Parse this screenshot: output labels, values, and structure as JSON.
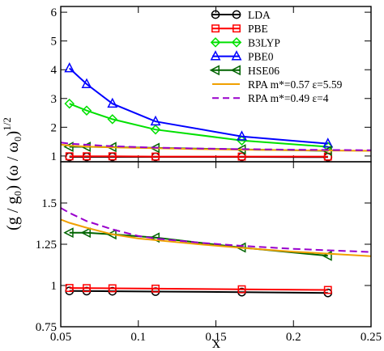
{
  "chart_data": [
    {
      "type": "line",
      "panel": "top",
      "xlim": [
        0.05,
        0.25
      ],
      "ylim": [
        0.8,
        6.2
      ],
      "y_ticks": [
        1,
        2,
        3,
        4,
        5,
        6
      ],
      "y_tick_labels": [
        "1",
        "2",
        "3",
        "4",
        "5",
        "6"
      ],
      "grid": false,
      "legend_position": "top-right",
      "series": [
        {
          "name": "LDA",
          "color": "#000000",
          "marker": "circle",
          "dash": "",
          "x": [
            0.0556,
            0.0667,
            0.0833,
            0.1111,
            0.1667,
            0.2222
          ],
          "y": [
            0.97,
            0.97,
            0.97,
            0.97,
            0.97,
            0.96
          ]
        },
        {
          "name": "PBE",
          "color": "#ff0000",
          "marker": "square",
          "dash": "",
          "x": [
            0.0556,
            0.0667,
            0.0833,
            0.1111,
            0.1667,
            0.2222
          ],
          "y": [
            0.99,
            0.99,
            0.99,
            0.98,
            0.98,
            0.98
          ]
        },
        {
          "name": "B3LYP",
          "color": "#00e000",
          "marker": "diamond",
          "dash": "",
          "x": [
            0.0556,
            0.0667,
            0.0833,
            0.1111,
            0.1667,
            0.2222
          ],
          "y": [
            2.82,
            2.58,
            2.28,
            1.92,
            1.54,
            1.32
          ]
        },
        {
          "name": "PBE0",
          "color": "#0000ff",
          "marker": "triangle-up",
          "dash": "",
          "x": [
            0.0556,
            0.0667,
            0.0833,
            0.1111,
            0.1667,
            0.2222
          ],
          "y": [
            4.05,
            3.5,
            2.82,
            2.2,
            1.68,
            1.43
          ]
        },
        {
          "name": "HSE06",
          "color": "#006400",
          "marker": "triangle-left",
          "dash": "",
          "x": [
            0.0556,
            0.0667,
            0.0833,
            0.1111,
            0.1667,
            0.2222
          ],
          "y": [
            1.32,
            1.32,
            1.31,
            1.28,
            1.23,
            1.18
          ]
        },
        {
          "name": "RPA m*=0.57 ε=5.59",
          "color": "#f0a000",
          "marker": "none",
          "dash": "",
          "x": [
            0.05,
            0.0556,
            0.0667,
            0.0833,
            0.1111,
            0.1389,
            0.1667,
            0.2,
            0.2222,
            0.25
          ],
          "y": [
            1.4,
            1.36,
            1.33,
            1.3,
            1.27,
            1.24,
            1.22,
            1.2,
            1.19,
            1.18
          ]
        },
        {
          "name": "RPA m*=0.49 ε=4",
          "color": "#9900cc",
          "marker": "none",
          "dash": "9,5",
          "x": [
            0.05,
            0.0556,
            0.0667,
            0.0833,
            0.1111,
            0.1389,
            0.1667,
            0.2,
            0.2222,
            0.25
          ],
          "y": [
            1.47,
            1.43,
            1.39,
            1.34,
            1.29,
            1.26,
            1.24,
            1.22,
            1.21,
            1.2
          ]
        }
      ]
    },
    {
      "type": "line",
      "panel": "bottom",
      "xlim": [
        0.05,
        0.25
      ],
      "ylim": [
        0.75,
        1.75
      ],
      "x_ticks": [
        0.05,
        0.1,
        0.15,
        0.2,
        0.25
      ],
      "x_tick_labels": [
        "0.05",
        "0.1",
        "0.15",
        "0.2",
        "0.25"
      ],
      "y_ticks": [
        0.75,
        1.0,
        1.25,
        1.5
      ],
      "y_tick_labels": [
        "0.75",
        "1",
        "1.25",
        "1.5"
      ],
      "xlabel": "x",
      "ylabel": "(g / g₀) (ω / ω₀)",
      "ylabel_exponent": "1/2",
      "grid": false,
      "series": [
        {
          "name": "LDA",
          "color": "#000000",
          "marker": "circle",
          "dash": "",
          "x": [
            0.0556,
            0.0667,
            0.0833,
            0.1111,
            0.1667,
            0.2222
          ],
          "y": [
            0.967,
            0.966,
            0.965,
            0.963,
            0.96,
            0.955
          ]
        },
        {
          "name": "PBE",
          "color": "#ff0000",
          "marker": "square",
          "dash": "",
          "x": [
            0.0556,
            0.0667,
            0.0833,
            0.1111,
            0.1667,
            0.2222
          ],
          "y": [
            0.985,
            0.984,
            0.983,
            0.981,
            0.977,
            0.973
          ]
        },
        {
          "name": "HSE06",
          "color": "#006400",
          "marker": "triangle-left",
          "dash": "",
          "x": [
            0.0556,
            0.0667,
            0.0833,
            0.1111,
            0.1667,
            0.2222
          ],
          "y": [
            1.32,
            1.32,
            1.31,
            1.29,
            1.23,
            1.18
          ]
        },
        {
          "name": "RPA m*=0.57 ε=5.59",
          "color": "#f0a000",
          "marker": "none",
          "dash": "",
          "x": [
            0.05,
            0.0556,
            0.0667,
            0.0833,
            0.1,
            0.1111,
            0.1389,
            0.1667,
            0.2,
            0.2222,
            0.25
          ],
          "y": [
            1.4,
            1.38,
            1.35,
            1.31,
            1.285,
            1.275,
            1.25,
            1.228,
            1.205,
            1.193,
            1.178
          ]
        },
        {
          "name": "RPA m*=0.49 ε=4",
          "color": "#9900cc",
          "marker": "none",
          "dash": "9,5",
          "x": [
            0.05,
            0.0556,
            0.0667,
            0.0833,
            0.1,
            0.1111,
            0.1389,
            0.1667,
            0.2,
            0.2222,
            0.25
          ],
          "y": [
            1.47,
            1.44,
            1.39,
            1.34,
            1.3,
            1.285,
            1.26,
            1.24,
            1.222,
            1.213,
            1.203
          ]
        }
      ]
    }
  ]
}
